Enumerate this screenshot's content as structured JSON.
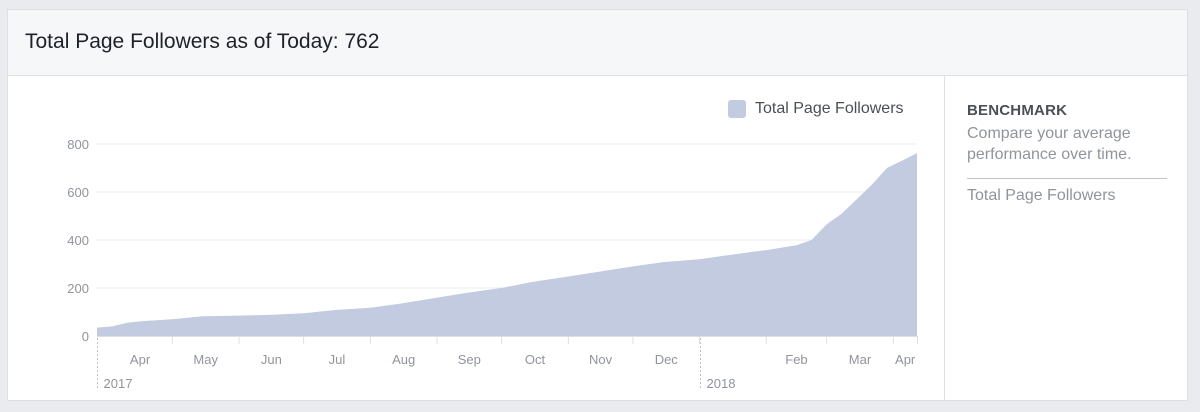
{
  "header": {
    "title": "Total Page Followers as of Today: 762"
  },
  "benchmark": {
    "title": "BENCHMARK",
    "description": "Compare your average performance over time.",
    "metric": "Total Page Followers"
  },
  "colors": {
    "area": "#c3cbe0",
    "grid": "#e9ebee",
    "axis": "#dddfe2",
    "text": "#90949c"
  },
  "chart_data": {
    "type": "area",
    "legend": "top-right",
    "grid": true,
    "series": [
      {
        "name": "Total Page Followers",
        "color": "#c3cbe0",
        "x": [
          "2017-03-27",
          "2017-04-03",
          "2017-04-10",
          "2017-04-17",
          "2017-05-01",
          "2017-05-15",
          "2017-06-01",
          "2017-06-15",
          "2017-07-01",
          "2017-07-15",
          "2017-08-01",
          "2017-08-15",
          "2017-09-01",
          "2017-09-15",
          "2017-10-01",
          "2017-10-15",
          "2017-11-01",
          "2017-11-15",
          "2017-12-01",
          "2017-12-15",
          "2018-01-01",
          "2018-01-15",
          "2018-02-01",
          "2018-02-15",
          "2018-02-22",
          "2018-03-01",
          "2018-03-08",
          "2018-03-15",
          "2018-03-22",
          "2018-03-29",
          "2018-04-05",
          "2018-04-12"
        ],
        "values": [
          35,
          40,
          55,
          62,
          70,
          82,
          85,
          88,
          95,
          108,
          118,
          135,
          160,
          180,
          200,
          225,
          248,
          268,
          290,
          308,
          320,
          338,
          358,
          378,
          400,
          465,
          510,
          570,
          630,
          700,
          730,
          762
        ]
      }
    ],
    "ylim": [
      0,
      800
    ],
    "yticks": [
      0,
      200,
      400,
      600,
      800
    ],
    "xrange": [
      "2017-03-27",
      "2018-04-12"
    ],
    "xticks": [
      {
        "date": "2017-04-01",
        "label": "Apr"
      },
      {
        "date": "2017-05-01",
        "label": "May"
      },
      {
        "date": "2017-06-01",
        "label": "Jun"
      },
      {
        "date": "2017-07-01",
        "label": "Jul"
      },
      {
        "date": "2017-08-01",
        "label": "Aug"
      },
      {
        "date": "2017-09-01",
        "label": "Sep"
      },
      {
        "date": "2017-10-01",
        "label": "Oct"
      },
      {
        "date": "2017-11-01",
        "label": "Nov"
      },
      {
        "date": "2017-12-01",
        "label": "Dec"
      },
      {
        "date": "2018-02-01",
        "label": "Feb"
      },
      {
        "date": "2018-03-01",
        "label": "Mar"
      },
      {
        "date": "2018-04-01",
        "label": "Apr"
      }
    ],
    "years": [
      {
        "date": "2017-03-27",
        "label": "2017"
      },
      {
        "date": "2018-01-01",
        "label": "2018"
      }
    ]
  }
}
